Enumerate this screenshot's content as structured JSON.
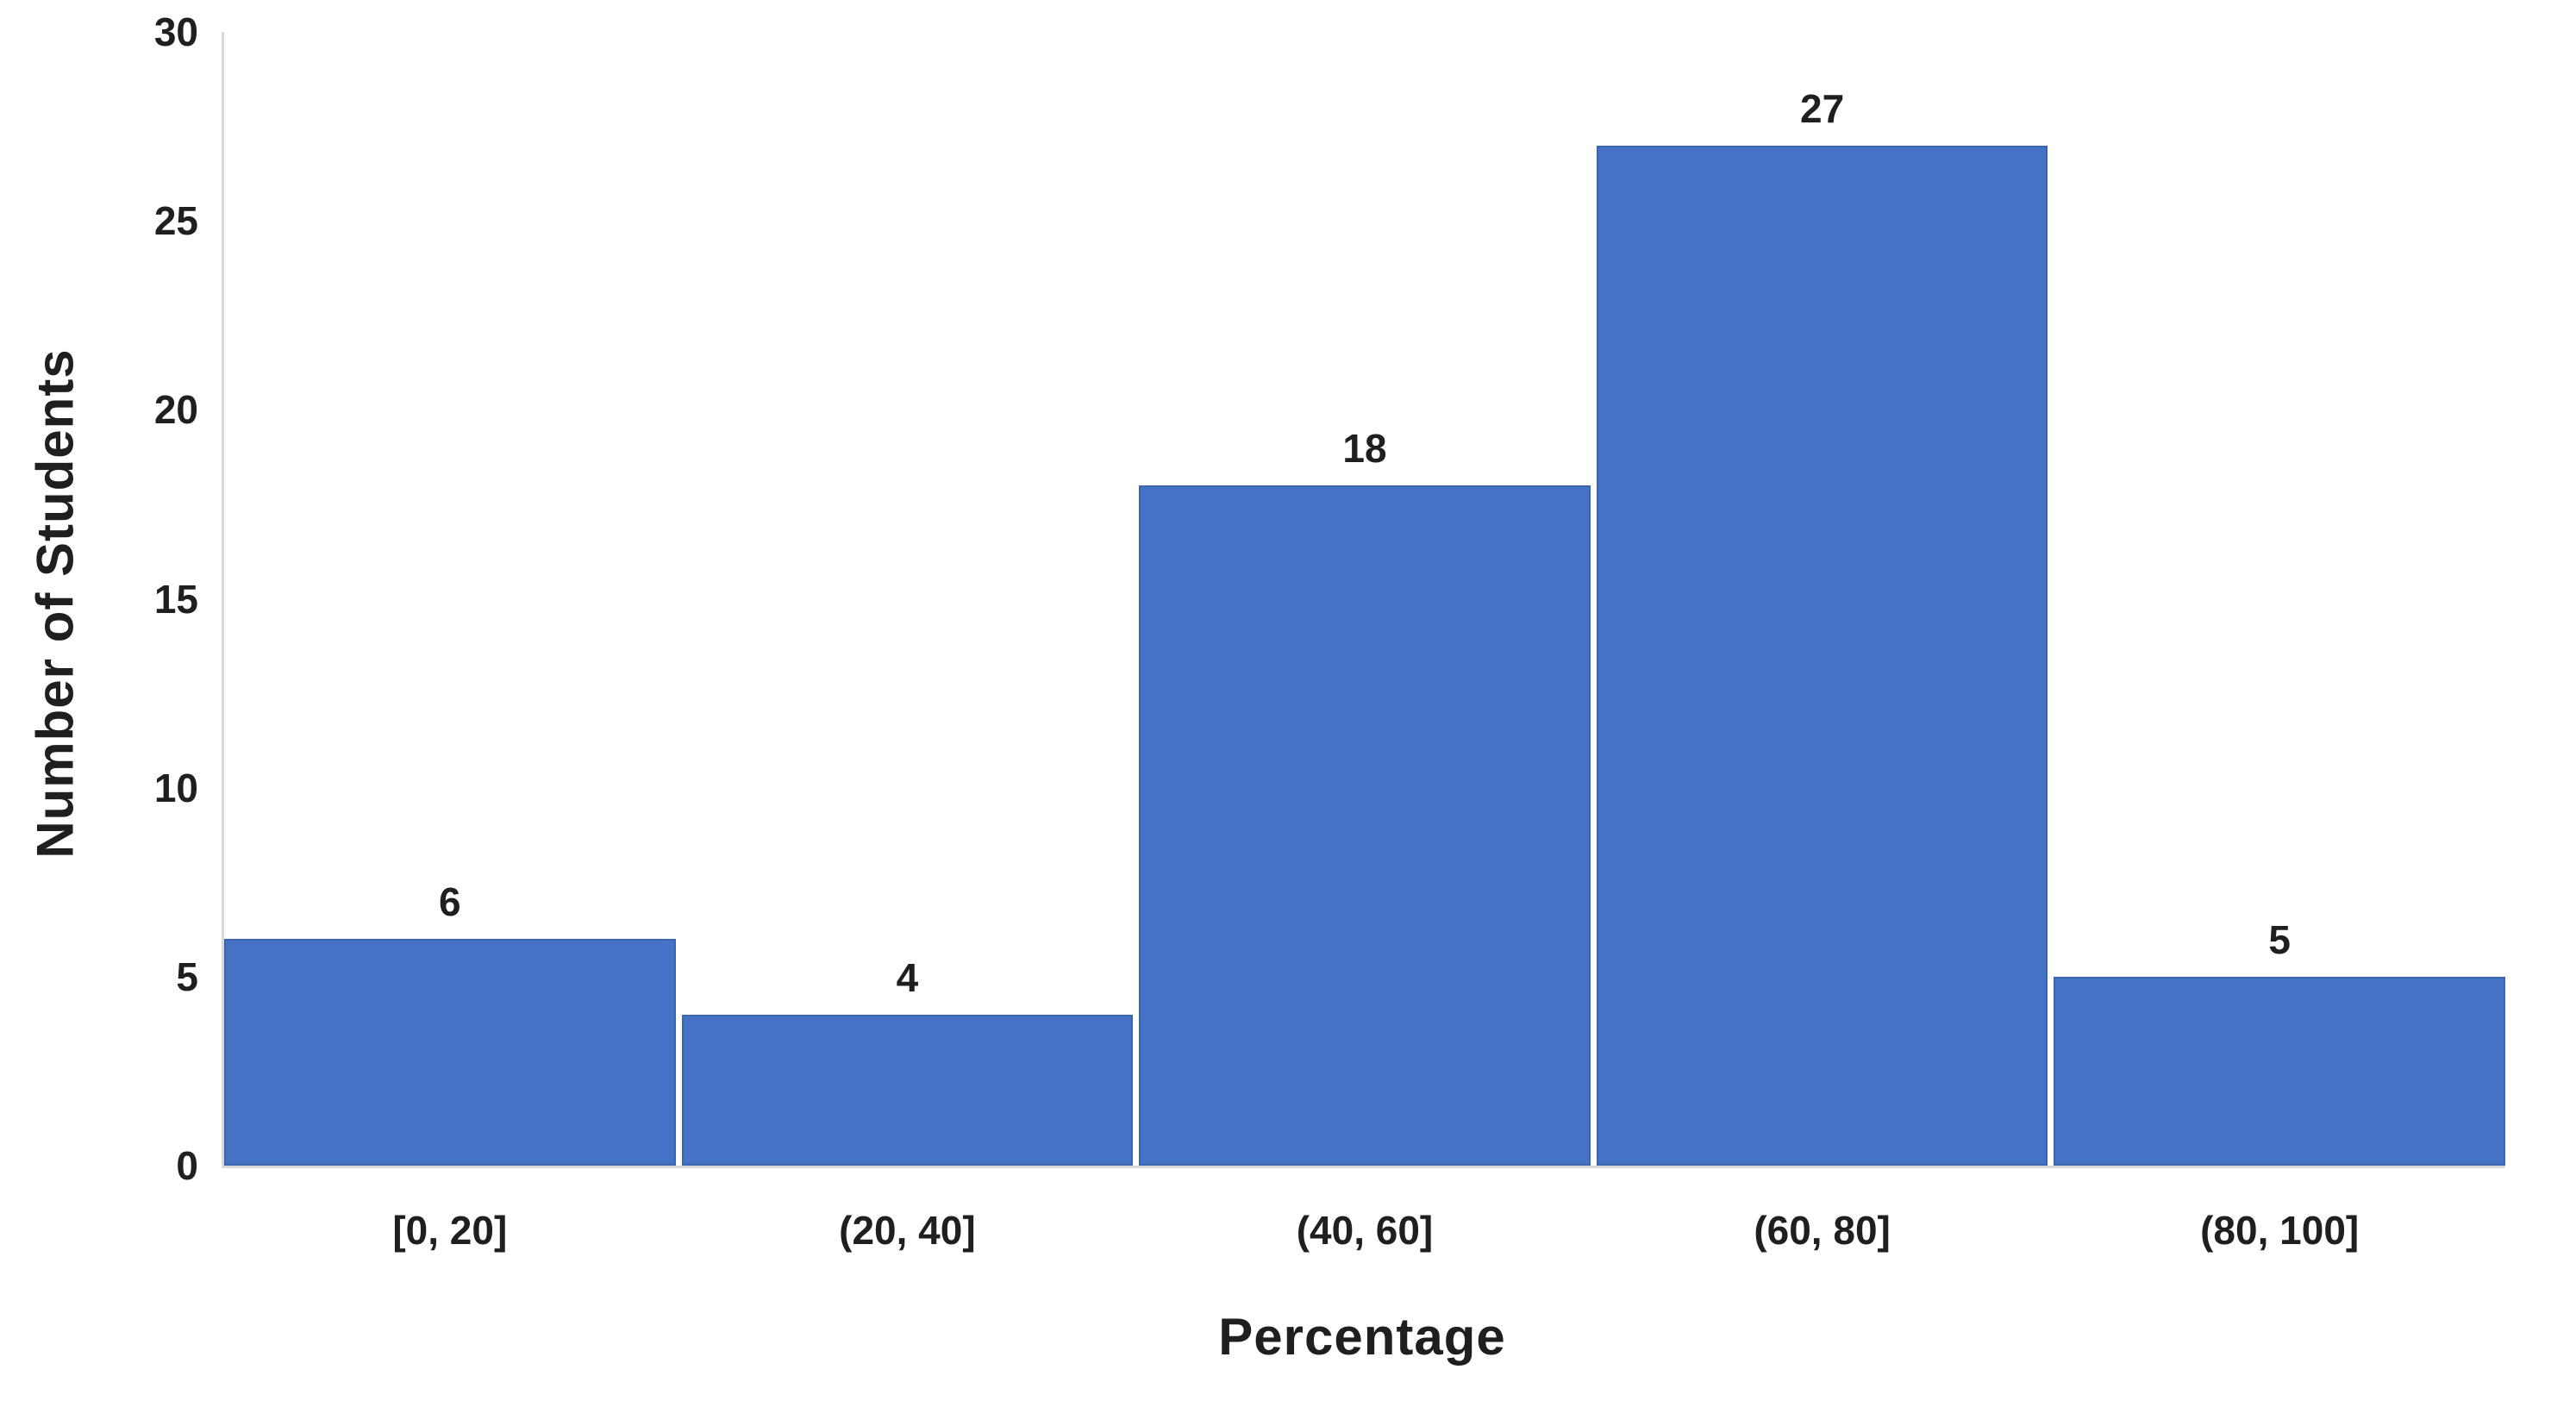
{
  "chart_data": {
    "type": "bar",
    "title": "",
    "categories": [
      "[0, 20]",
      "(20, 40]",
      "(40, 60]",
      "(60, 80]",
      "(80, 100]"
    ],
    "values": [
      6,
      4,
      18,
      27,
      5
    ],
    "data_labels": [
      6,
      4,
      18,
      27,
      5
    ],
    "xlabel": "Percentage",
    "ylabel": "Number of Students",
    "ylim": [
      0,
      30
    ],
    "yticks": [
      0,
      5,
      10,
      15,
      20,
      25,
      30
    ],
    "bar_color": "#4472c4",
    "axis_line_color": "#d9d9d9",
    "text_color": "#1f1f1f",
    "background_color": "#ffffff",
    "grid": false,
    "legend": false,
    "gap_style": "histogram-adjacent-bars-thin-white-gap"
  }
}
